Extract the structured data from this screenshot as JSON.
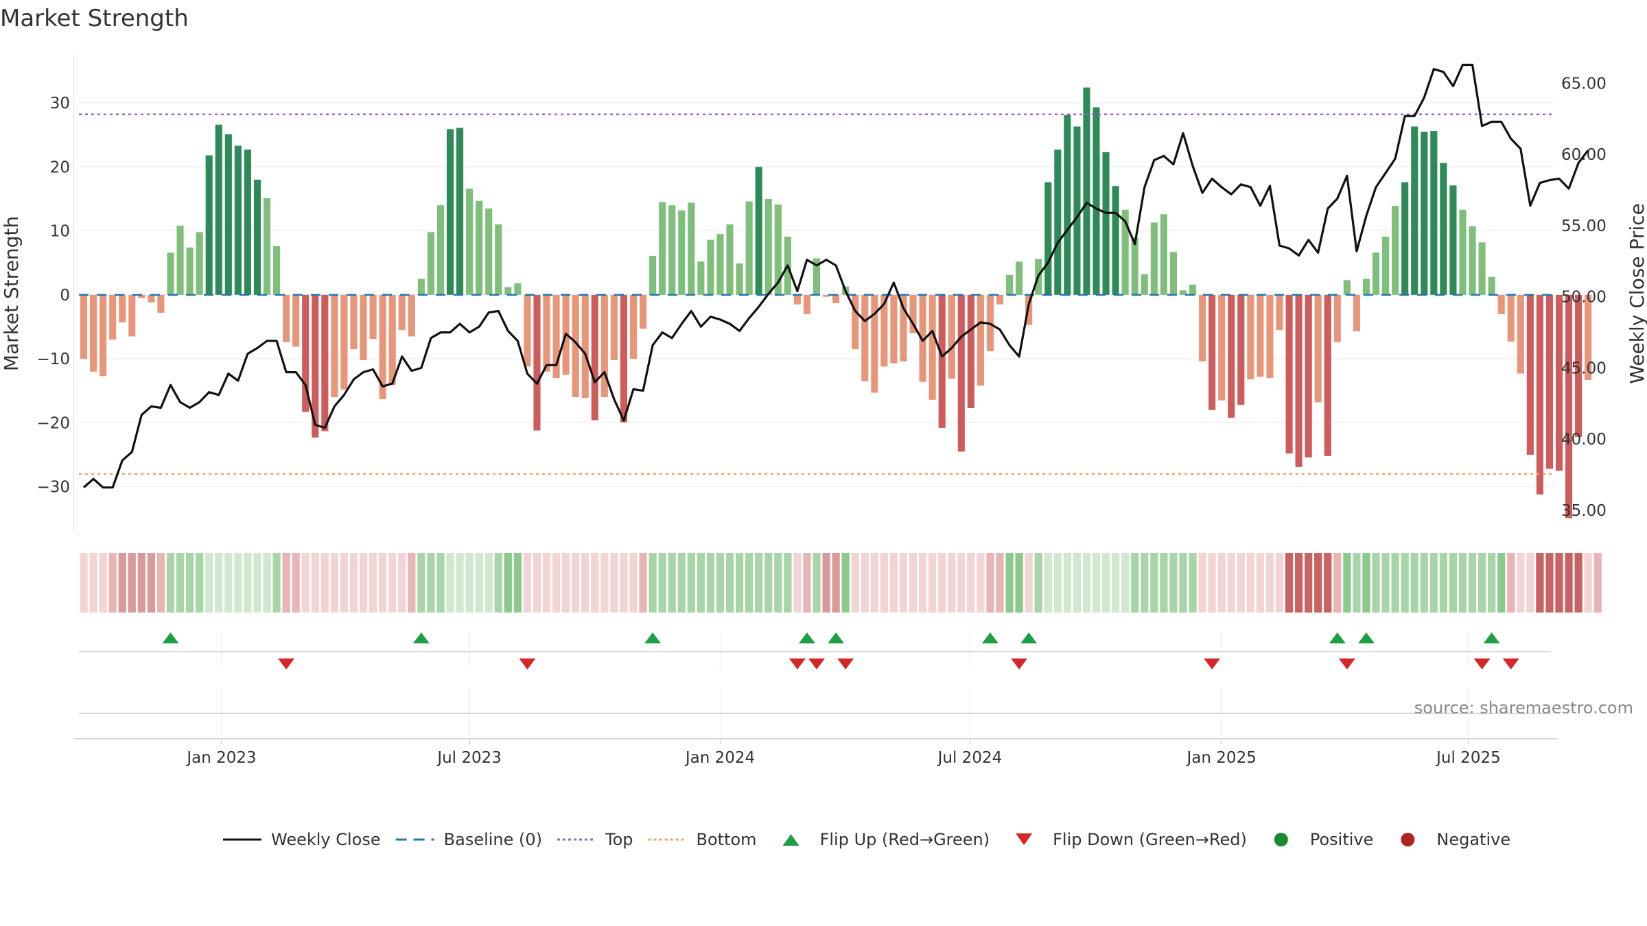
{
  "chart_data": {
    "type": "bar",
    "title": "Market Strength",
    "ylabel_left": "Market Strength",
    "ylabel_right": "Weekly Close Price",
    "xlabel": "",
    "ylim_left": [
      -37,
      37.5
    ],
    "ylim_right": [
      33.5,
      67
    ],
    "yticks_left": [
      30,
      20,
      10,
      0,
      -10,
      -20,
      -30
    ],
    "ytick_labels_left": [
      "30",
      "20",
      "10",
      "0",
      "−10",
      "−20",
      "−30"
    ],
    "yticks_right": [
      65,
      60,
      55,
      50,
      45,
      40,
      35
    ],
    "ytick_labels_right": [
      "65.00",
      "60.00",
      "55.00",
      "50.00",
      "45.00",
      "40.00",
      "35.00"
    ],
    "x_start": "2022-10-28",
    "x_week_count": 153,
    "x_tick_weeks": [
      14.3,
      40,
      66,
      91.9,
      118,
      143.6
    ],
    "x_tick_labels": [
      "Jan 2023",
      "Jul 2023",
      "Jan 2024",
      "Jul 2024",
      "Jan 2025",
      "Jul 2025"
    ],
    "grid": true,
    "top_line": 28.2,
    "bottom_line": -28,
    "baseline": 0,
    "series": [
      {
        "name": "Market Strength",
        "type": "bar",
        "values": [
          -10,
          -12,
          -12.7,
          -7,
          -4.3,
          -6.5,
          -0.5,
          -1.2,
          -2.8,
          6.6,
          10.8,
          7.4,
          9.8,
          21.8,
          26.6,
          25.1,
          23.3,
          22.7,
          18,
          15.1,
          7.6,
          -7.4,
          -8.1,
          -18.3,
          -22.3,
          -21.3,
          -16,
          -14.8,
          -8.5,
          -10.2,
          -6.9,
          -16.3,
          -14.1,
          -5.5,
          -6.5,
          2.5,
          9.8,
          14,
          25.9,
          26.1,
          16.6,
          14.7,
          13.5,
          11,
          1.2,
          1.8,
          -11.2,
          -21.2,
          -12,
          -13,
          -12.5,
          -16,
          -16.1,
          -19.6,
          -16,
          -10.2,
          -19.9,
          -10,
          -5.3,
          6.1,
          14.5,
          14,
          13.2,
          14.4,
          5.2,
          8.6,
          9.5,
          11,
          4.9,
          14.6,
          20,
          15,
          14.1,
          9.1,
          -1.5,
          -3,
          5.7,
          -0.3,
          -1.3,
          1.3,
          -8.5,
          -13.5,
          -15.3,
          -11.2,
          -10.7,
          -10.4,
          -6,
          -13.6,
          -16.4,
          -20.8,
          -13.1,
          -24.5,
          -17.7,
          -14.2,
          -8.8,
          -1.5,
          3.1,
          5.2,
          -4.7,
          5.6,
          17.6,
          22.7,
          28.1,
          26.3,
          32.4,
          29.3,
          22.3,
          17,
          13.3,
          9,
          3.2,
          11.3,
          12.6,
          6.7,
          0.7,
          1.6,
          -10.4,
          -18,
          -16.5,
          -19.2,
          -17.2,
          -13.2,
          -12.8,
          -13,
          -5.5,
          -24.8,
          -26.9,
          -25.4,
          -16.8,
          -25.2,
          -7.4,
          2.3,
          -5.7,
          2.5,
          6.6,
          9.1,
          13.9,
          17.6,
          26.3,
          25.5,
          25.6,
          20.6,
          17.1,
          13.3,
          10.7,
          8.2,
          2.8,
          -3,
          -7.3,
          -12.3,
          -25,
          -31.2,
          -27.2,
          -27.5,
          -34.9,
          -22.2,
          -13.3
        ]
      },
      {
        "name": "Weekly Close",
        "type": "line",
        "axis": "right",
        "values": [
          36.6,
          37.2,
          36.6,
          36.6,
          38.5,
          39.1,
          41.7,
          42.3,
          42.2,
          43.8,
          42.6,
          42.2,
          42.6,
          43.3,
          43.1,
          44.6,
          44.1,
          46,
          46.4,
          46.9,
          46.9,
          44.7,
          44.7,
          43.8,
          41,
          40.8,
          42.3,
          43.1,
          44.2,
          44.7,
          44.9,
          43.7,
          43.9,
          45.8,
          44.8,
          45,
          47.1,
          47.5,
          47.5,
          48.1,
          47.5,
          47.9,
          48.9,
          49,
          47.6,
          46.9,
          44.6,
          43.9,
          45.2,
          45.2,
          47.4,
          46.8,
          46,
          44,
          44.7,
          42.8,
          41.3,
          43.5,
          43.4,
          46.6,
          47.5,
          47.1,
          48.1,
          49,
          47.9,
          48.6,
          48.4,
          48.1,
          47.6,
          48.5,
          49.3,
          50.2,
          51,
          52.2,
          50.4,
          52.6,
          52.2,
          52.6,
          52.2,
          50.4,
          49,
          48.3,
          48.8,
          49.5,
          51,
          49.2,
          48.1,
          46.9,
          47.6,
          45.8,
          46.4,
          47.2,
          47.7,
          48.2,
          48.1,
          47.7,
          46.6,
          45.8,
          49.5,
          51.5,
          52.4,
          53.8,
          54.7,
          55.6,
          56.6,
          56.2,
          55.9,
          55.9,
          55.3,
          53.7,
          57.7,
          59.6,
          59.9,
          59.3,
          61.5,
          59.2,
          57.3,
          58.3,
          57.7,
          57.2,
          57.9,
          57.7,
          56.4,
          57.8,
          53.6,
          53.4,
          52.9,
          54,
          53.1,
          56.2,
          56.9,
          58.5,
          53.2,
          55.7,
          57.7,
          58.7,
          59.7,
          62.7,
          62.7,
          64,
          66,
          65.8,
          64.8,
          66.3,
          66.3,
          62,
          62.3,
          62.3,
          61.1,
          60.4,
          56.4,
          58,
          58.2,
          58.3,
          57.6,
          59.4,
          60.3
        ],
        "color": "#111111"
      }
    ],
    "strip_values": [
      -1,
      -1,
      -1,
      -2,
      -3,
      -3,
      -3,
      -3,
      -2,
      2,
      2,
      2,
      2,
      1,
      1,
      1,
      1,
      1,
      1,
      1,
      2,
      -2,
      -2,
      -1,
      -1,
      -1,
      -1,
      -1,
      -1,
      -1,
      -1,
      -1,
      -1,
      -1,
      -2,
      2,
      2,
      2,
      1,
      1,
      1,
      1,
      1,
      2,
      3,
      3,
      -1,
      -1,
      -1,
      -1,
      -1,
      -1,
      -1,
      -1,
      -1,
      -1,
      -1,
      -1,
      -2,
      2,
      2,
      2,
      2,
      2,
      2,
      2,
      2,
      2,
      2,
      2,
      2,
      2,
      2,
      2,
      -1,
      -2,
      2,
      -3,
      -3,
      3,
      -1,
      -1,
      -1,
      -1,
      -1,
      -1,
      -1,
      -1,
      -1,
      -1,
      -1,
      -1,
      -1,
      -1,
      -2,
      -2,
      3,
      3,
      -1,
      2,
      1,
      1,
      1,
      1,
      1,
      1,
      1,
      1,
      1,
      2,
      2,
      2,
      2,
      2,
      2,
      2,
      -1,
      -1,
      -1,
      -1,
      -1,
      -1,
      -1,
      -1,
      -1,
      0,
      0,
      0,
      0,
      0,
      -2,
      3,
      2,
      3,
      2,
      2,
      2,
      2,
      2,
      2,
      2,
      2,
      2,
      2,
      2,
      2,
      2,
      3,
      -2,
      -1,
      -1,
      0,
      0,
      0,
      0,
      0,
      -1,
      -2
    ],
    "flips": {
      "up_weeks": [
        9,
        35,
        59,
        75,
        78,
        94,
        98,
        130,
        133,
        146
      ],
      "down_weeks": [
        21,
        46,
        74,
        76,
        79,
        97,
        117,
        131,
        145,
        148
      ]
    },
    "source": "source: sharemaestro.com",
    "legend": [
      {
        "label": "Weekly Close",
        "kind": "solid-line",
        "color": "#111111"
      },
      {
        "label": "Baseline (0)",
        "kind": "dashed-line",
        "color": "#1f77b4"
      },
      {
        "label": "Top",
        "kind": "dotted-line",
        "color": "#9467bd"
      },
      {
        "label": "Bottom",
        "kind": "dotted-line",
        "color": "#f4a259"
      },
      {
        "label": "Flip Up (Red→Green)",
        "kind": "triangle-up",
        "color": "#1e9e45"
      },
      {
        "label": "Flip Down (Green→Red)",
        "kind": "triangle-down",
        "color": "#d62728"
      },
      {
        "label": "Positive",
        "kind": "dot",
        "color": "#1a8a2e"
      },
      {
        "label": "Negative",
        "kind": "dot",
        "color": "#b22222"
      }
    ],
    "legend_position": "bottom-center",
    "colors": {
      "pos_strong": "#2e8b57",
      "pos_weak": "#7fbf7b",
      "neg_strong": "#cd5c5c",
      "neg_weak": "#e8967a",
      "strip_pos": [
        "#cfe8cf",
        "#a8d5a8",
        "#8cc98c",
        "#5aaf6a"
      ],
      "strip_neg": [
        "#f2d4d4",
        "#e8b4b4",
        "#d99a9a",
        "#c96262"
      ]
    }
  }
}
